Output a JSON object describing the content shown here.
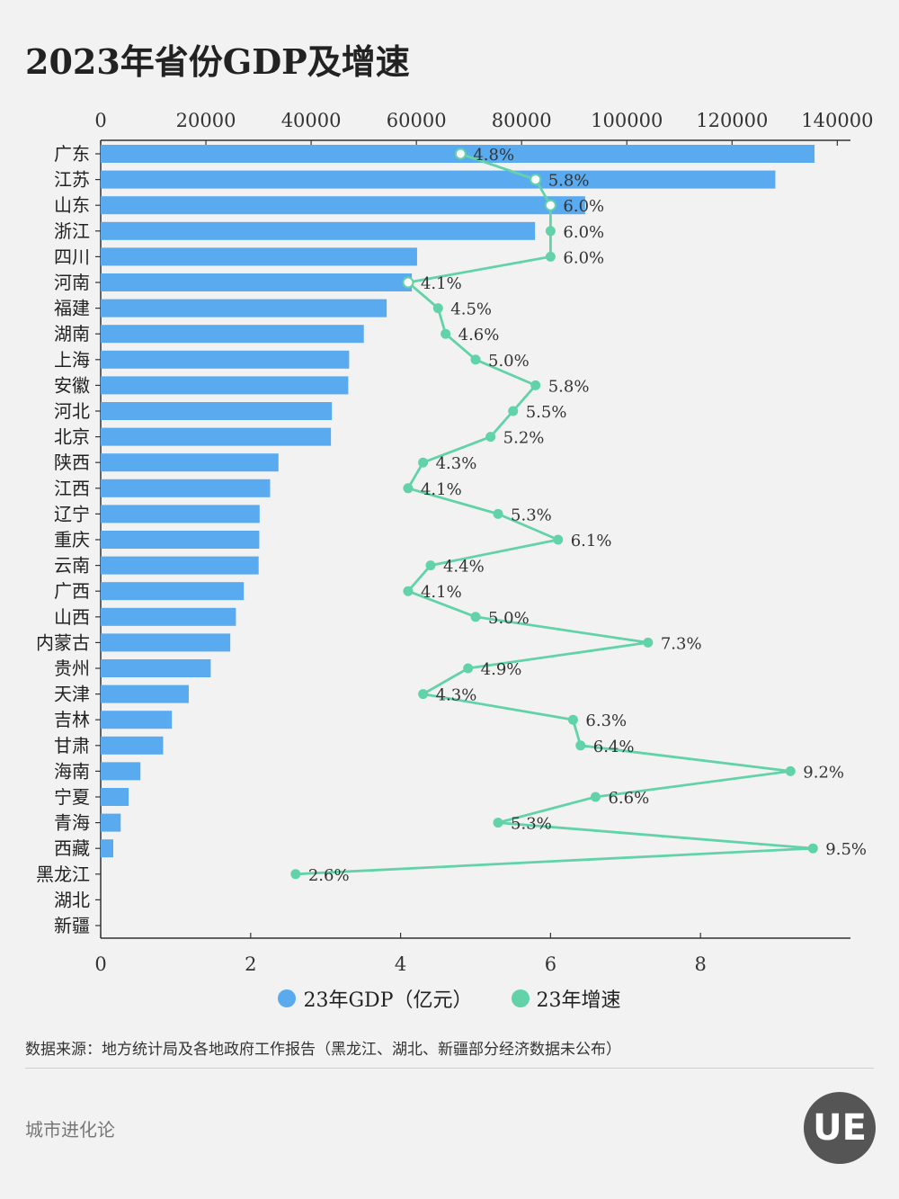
{
  "title": "2023年省份GDP及增速",
  "source_note": "数据来源：地方统计局及各地政府工作报告（黑龙江、湖北、新疆部分经济数据未公布）",
  "brand": "城市进化论",
  "logo_text": "UE",
  "legend": {
    "gdp": "23年GDP（亿元）",
    "growth": "23年增速"
  },
  "colors": {
    "bar": "#5aaaf0",
    "line": "#62d3a8"
  },
  "chart_data": {
    "type": "bar+line",
    "title": "2023年省份GDP及增速",
    "categories": [
      "广东",
      "江苏",
      "山东",
      "浙江",
      "四川",
      "河南",
      "福建",
      "湖南",
      "上海",
      "安徽",
      "河北",
      "北京",
      "陕西",
      "江西",
      "辽宁",
      "重庆",
      "云南",
      "广西",
      "山西",
      "内蒙古",
      "贵州",
      "天津",
      "吉林",
      "甘肃",
      "海南",
      "宁夏",
      "青海",
      "西藏",
      "黑龙江",
      "湖北",
      "新疆"
    ],
    "series": [
      {
        "name": "23年GDP（亿元）",
        "type": "bar",
        "axis": "top",
        "values": [
          135673,
          128222,
          92069,
          82553,
          60133,
          59132,
          54355,
          50012,
          47218,
          47051,
          43944,
          43761,
          33786,
          32201,
          30209,
          30146,
          30021,
          27202,
          25698,
          24627,
          20913,
          16737,
          13531,
          11864,
          7551,
          5315,
          3799,
          2393,
          null,
          null,
          null
        ]
      },
      {
        "name": "23年增速",
        "type": "line",
        "axis": "bottom",
        "unit": "%",
        "values": [
          4.8,
          5.8,
          6.0,
          6.0,
          6.0,
          4.1,
          4.5,
          4.6,
          5.0,
          5.8,
          5.5,
          5.2,
          4.3,
          4.1,
          5.3,
          6.1,
          4.4,
          4.1,
          5.0,
          7.3,
          4.9,
          4.3,
          6.3,
          6.4,
          9.2,
          6.6,
          5.3,
          9.5,
          2.6,
          null,
          null
        ],
        "labels": [
          "4.8%",
          "5.8%",
          "6.0%",
          "6.0%",
          "6.0%",
          "4.1%",
          "4.5%",
          "4.6%",
          "5.0%",
          "5.8%",
          "5.5%",
          "5.2%",
          "4.3%",
          "4.1%",
          "5.3%",
          "6.1%",
          "4.4%",
          "4.1%",
          "5.0%",
          "7.3%",
          "4.9%",
          "4.3%",
          "6.3%",
          "6.4%",
          "9.2%",
          "6.6%",
          "5.3%",
          "9.5%",
          "2.6%",
          "",
          ""
        ]
      }
    ],
    "top_axis": {
      "range": [
        0,
        142500
      ],
      "ticks": [
        0,
        20000,
        40000,
        60000,
        80000,
        100000,
        120000,
        140000
      ]
    },
    "bottom_axis": {
      "range": [
        0,
        10
      ],
      "ticks": [
        0,
        2,
        4,
        6,
        8
      ]
    },
    "legend_position": "bottom",
    "grid": false
  }
}
